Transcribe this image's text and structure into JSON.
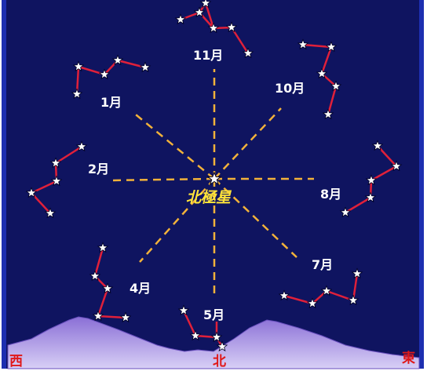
{
  "center_label": "北極星",
  "month_labels": {
    "m11": "11月",
    "m10": "10月",
    "m1": "1月",
    "m2": "2月",
    "m8": "8月",
    "m4": "4月",
    "m7": "7月",
    "m5": "5月"
  },
  "directions": {
    "west": "西",
    "north": "北",
    "east": "東"
  },
  "colors": {
    "sky": "#0f1460",
    "border": "#1d2fb0",
    "dash": "#f2b23a",
    "constellation_line": "#e0203a",
    "star": "#ffffff",
    "polaris_label": "#ffe33a",
    "month_label": "#ffffff",
    "direction_label": "#e01818",
    "mountain": "#9a7fe0"
  }
}
